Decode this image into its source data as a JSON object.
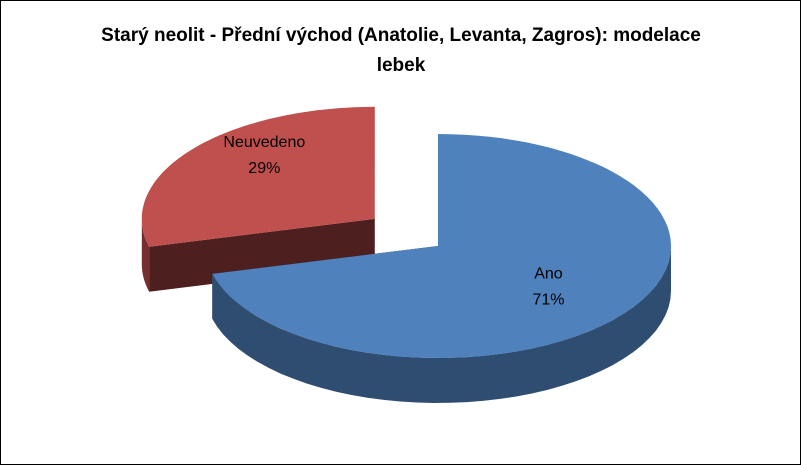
{
  "chart_data": {
    "type": "pie3d",
    "title": "Starý neolit - Přední východ (Anatolie, Levanta, Zagros): modelace lebek",
    "categories": [
      "Ano",
      "Neuvedeno"
    ],
    "values": [
      71,
      29
    ],
    "value_labels": [
      "71%",
      "29%"
    ],
    "colors": [
      "#4f81bd",
      "#c0504d"
    ],
    "exploded": [
      false,
      true
    ]
  }
}
